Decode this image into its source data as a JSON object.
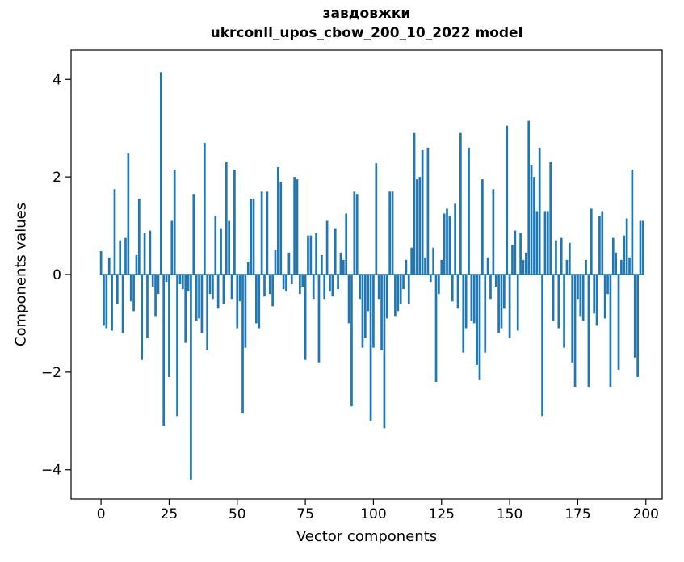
{
  "chart_data": {
    "type": "bar",
    "title": "завдовжки",
    "subtitle": "ukrconll_upos_cbow_200_10_2022 model",
    "xlabel": "Vector components",
    "ylabel": "Components values",
    "xlim": [
      -11,
      206
    ],
    "ylim": [
      -4.6,
      4.6
    ],
    "x_start": 0,
    "bar_color": "#1f77b4",
    "axis_color": "#000000",
    "grid": false,
    "legend": "none",
    "xticks": {
      "values": [
        0,
        25,
        50,
        75,
        100,
        125,
        150,
        175,
        200
      ],
      "labels": [
        "0",
        "25",
        "50",
        "75",
        "100",
        "125",
        "150",
        "175",
        "200"
      ]
    },
    "yticks": {
      "values": [
        -4,
        -2,
        0,
        2,
        4
      ],
      "labels": [
        "−4",
        "−2",
        "0",
        "2",
        "4"
      ]
    },
    "values": [
      0.48,
      -1.05,
      -1.1,
      0.35,
      -1.15,
      1.75,
      -0.6,
      0.7,
      -1.2,
      0.75,
      2.48,
      -0.55,
      -0.75,
      0.4,
      1.55,
      -1.75,
      0.85,
      -1.3,
      0.9,
      -0.25,
      -0.85,
      -0.4,
      4.15,
      -3.1,
      -0.15,
      -2.1,
      1.1,
      2.15,
      -2.9,
      -0.2,
      -0.3,
      -1.4,
      -0.35,
      -4.2,
      1.65,
      -0.95,
      -0.9,
      -1.2,
      2.7,
      -1.55,
      -0.4,
      -0.5,
      1.2,
      -0.7,
      0.95,
      -0.6,
      2.3,
      1.1,
      -0.5,
      2.15,
      -1.1,
      -0.55,
      -2.85,
      -1.5,
      0.25,
      1.55,
      1.55,
      -1.0,
      -1.1,
      1.7,
      -0.45,
      1.7,
      -0.4,
      -0.65,
      0.5,
      2.2,
      1.9,
      -0.3,
      -0.35,
      0.45,
      -0.2,
      2.0,
      1.95,
      -0.4,
      -0.25,
      -1.75,
      0.8,
      0.8,
      -0.5,
      0.85,
      -1.8,
      0.4,
      -0.5,
      1.1,
      -0.35,
      -0.45,
      0.95,
      -0.3,
      0.45,
      0.3,
      1.25,
      -1.0,
      -2.7,
      1.7,
      1.65,
      -0.5,
      -1.5,
      -1.3,
      -0.75,
      -3.0,
      -1.5,
      2.28,
      -0.5,
      -1.55,
      -3.15,
      -0.9,
      1.7,
      1.7,
      -0.85,
      -0.75,
      -0.6,
      -0.3,
      0.3,
      -0.6,
      0.55,
      2.9,
      1.95,
      2.0,
      2.55,
      0.35,
      2.6,
      -0.15,
      0.55,
      -2.2,
      -0.4,
      0.3,
      1.25,
      1.35,
      1.2,
      -0.55,
      1.45,
      -0.7,
      2.9,
      -1.6,
      -1.1,
      2.6,
      -0.95,
      -1.0,
      -1.85,
      -2.15,
      1.95,
      -1.6,
      0.35,
      -0.5,
      1.75,
      -0.25,
      -1.2,
      -1.1,
      -0.7,
      3.05,
      -1.3,
      0.6,
      0.9,
      -1.15,
      0.85,
      0.3,
      0.45,
      3.15,
      2.25,
      2.0,
      1.3,
      2.6,
      -2.9,
      1.3,
      1.3,
      2.3,
      -0.95,
      0.7,
      -1.1,
      0.75,
      -1.5,
      0.3,
      0.65,
      -1.8,
      -2.3,
      -0.5,
      -0.85,
      -0.95,
      0.3,
      -2.3,
      1.35,
      -0.8,
      -1.05,
      1.2,
      1.3,
      -0.9,
      -0.4,
      -2.3,
      0.75,
      0.45,
      -1.95,
      0.3,
      0.8,
      1.15,
      0.35,
      2.15,
      -1.7,
      -2.1,
      1.1,
      1.1
    ]
  }
}
